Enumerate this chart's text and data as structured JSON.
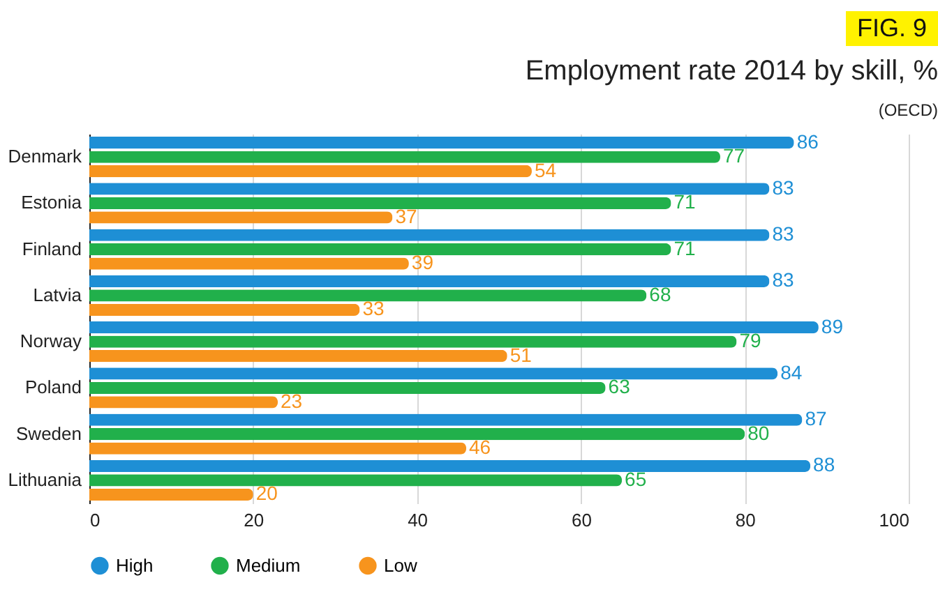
{
  "chart_data": {
    "type": "bar",
    "orientation": "horizontal",
    "title": "Employment rate 2014 by skill, %",
    "annotations": [
      "FIG. 9",
      "(OECD)"
    ],
    "categories": [
      "Denmark",
      "Estonia",
      "Finland",
      "Latvia",
      "Norway",
      "Poland",
      "Sweden",
      "Lithuania"
    ],
    "series": [
      {
        "name": "High",
        "color": "#1e8fd5",
        "values": [
          86,
          83,
          83,
          83,
          89,
          84,
          87,
          88
        ]
      },
      {
        "name": "Medium",
        "color": "#21b04b",
        "values": [
          77,
          71,
          71,
          68,
          79,
          63,
          80,
          65
        ]
      },
      {
        "name": "Low",
        "color": "#f7941d",
        "values": [
          54,
          37,
          39,
          33,
          51,
          23,
          46,
          20
        ]
      }
    ],
    "xlim": [
      0,
      100
    ],
    "xticks": [
      0,
      20,
      40,
      60,
      80,
      100
    ],
    "grid": "x",
    "legend": "bottom left",
    "data_labels": true
  }
}
